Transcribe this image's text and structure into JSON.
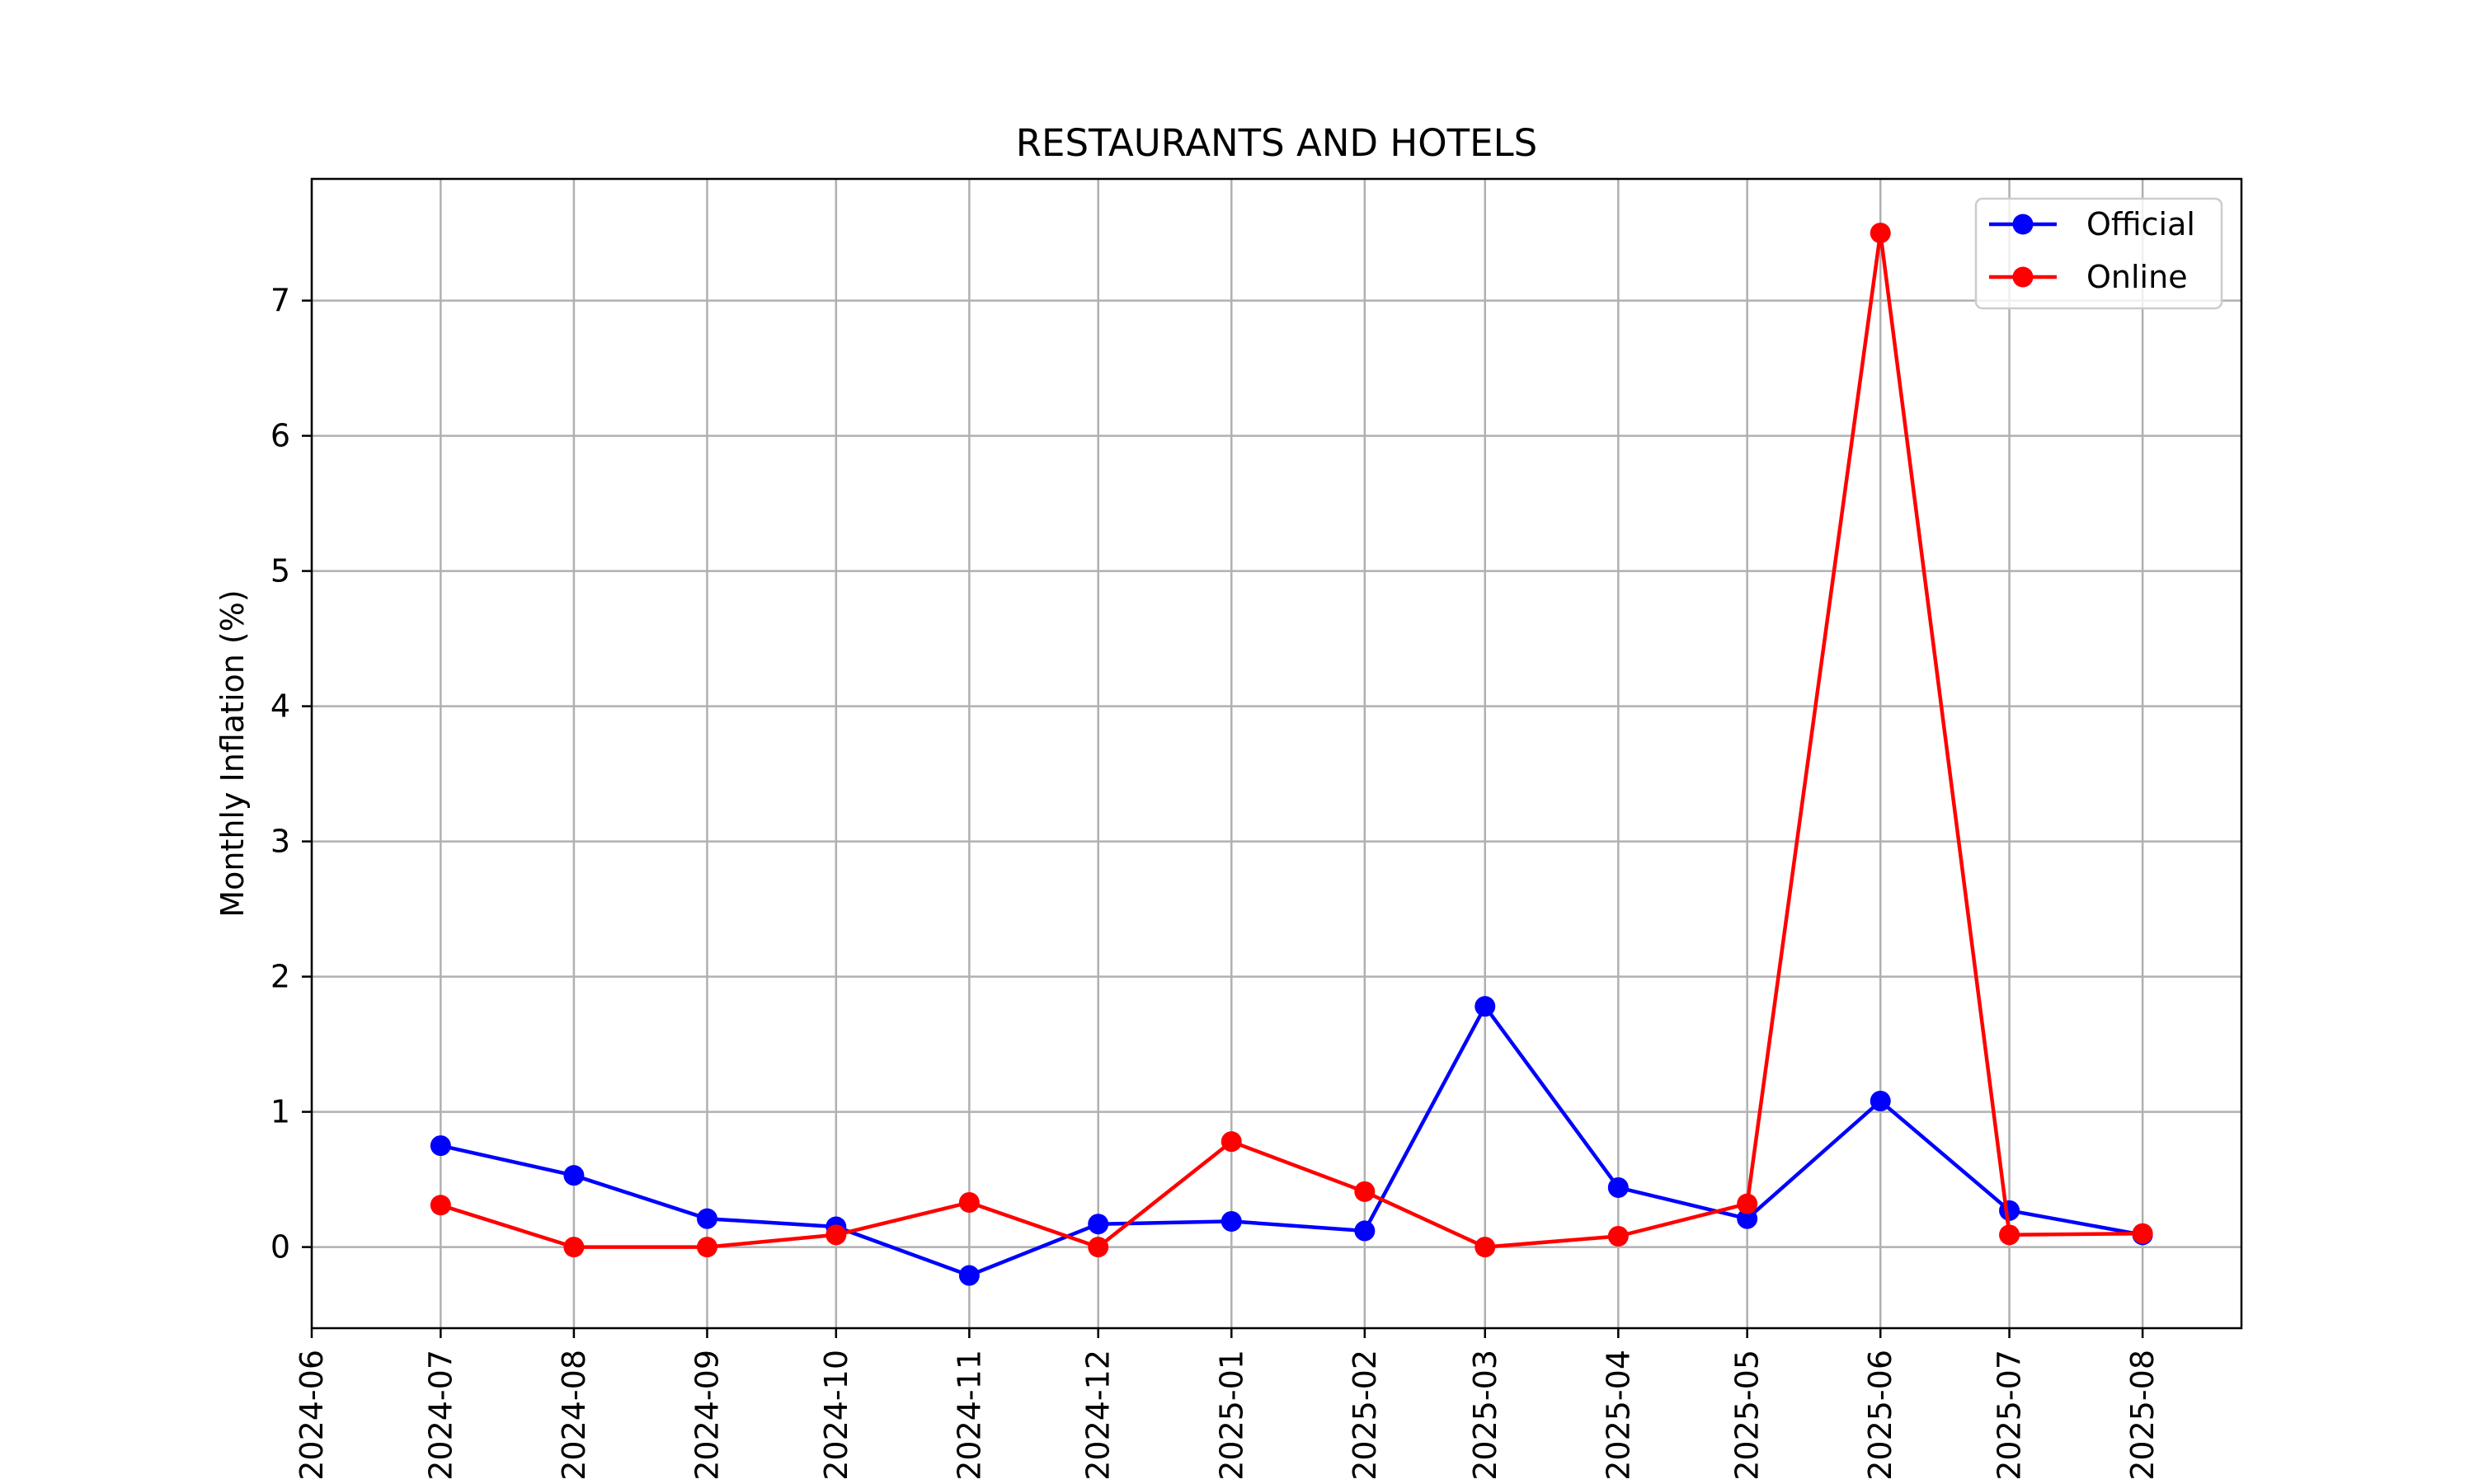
{
  "chart_data": {
    "type": "line",
    "title": "RESTAURANTS AND HOTELS",
    "xlabel": "",
    "ylabel": "Monthly Inflation (%)",
    "x_ticks": [
      "2024-06",
      "2024-07",
      "2024-08",
      "2024-09",
      "2024-10",
      "2024-11",
      "2024-12",
      "2025-01",
      "2025-02",
      "2025-03",
      "2025-04",
      "2025-05",
      "2025-06",
      "2025-07",
      "2025-08"
    ],
    "y_ticks": [
      0,
      1,
      2,
      3,
      4,
      5,
      6,
      7
    ],
    "ylim": [
      -0.6,
      7.9
    ],
    "xlim": [
      "2024-06-01",
      "2025-08-24"
    ],
    "grid": true,
    "legend_position": "upper right",
    "series": [
      {
        "name": "Official",
        "color": "#0000ff",
        "points": [
          {
            "x": "2024-07-01",
            "y": 0.75
          },
          {
            "x": "2024-08-01",
            "y": 0.53
          },
          {
            "x": "2024-09-01",
            "y": 0.21
          },
          {
            "x": "2024-10-01",
            "y": 0.15
          },
          {
            "x": "2024-11-01",
            "y": -0.21
          },
          {
            "x": "2024-12-01",
            "y": 0.17
          },
          {
            "x": "2025-01-01",
            "y": 0.19
          },
          {
            "x": "2025-02-01",
            "y": 0.12
          },
          {
            "x": "2025-03-01",
            "y": 1.78
          },
          {
            "x": "2025-04-01",
            "y": 0.44
          },
          {
            "x": "2025-05-01",
            "y": 0.21
          },
          {
            "x": "2025-06-01",
            "y": 1.08
          },
          {
            "x": "2025-07-01",
            "y": 0.27
          },
          {
            "x": "2025-08-01",
            "y": 0.09
          }
        ]
      },
      {
        "name": "Online",
        "color": "#ff0000",
        "points": [
          {
            "x": "2024-07-01",
            "y": 0.31
          },
          {
            "x": "2024-08-01",
            "y": 0.0
          },
          {
            "x": "2024-09-01",
            "y": 0.0
          },
          {
            "x": "2024-10-01",
            "y": 0.09
          },
          {
            "x": "2024-11-01",
            "y": 0.33
          },
          {
            "x": "2024-12-01",
            "y": 0.0
          },
          {
            "x": "2025-01-01",
            "y": 0.78
          },
          {
            "x": "2025-02-01",
            "y": 0.41
          },
          {
            "x": "2025-03-01",
            "y": 0.0
          },
          {
            "x": "2025-04-01",
            "y": 0.08
          },
          {
            "x": "2025-05-01",
            "y": 0.32
          },
          {
            "x": "2025-06-01",
            "y": 7.5
          },
          {
            "x": "2025-07-01",
            "y": 0.09
          },
          {
            "x": "2025-08-01",
            "y": 0.1
          }
        ]
      }
    ]
  }
}
